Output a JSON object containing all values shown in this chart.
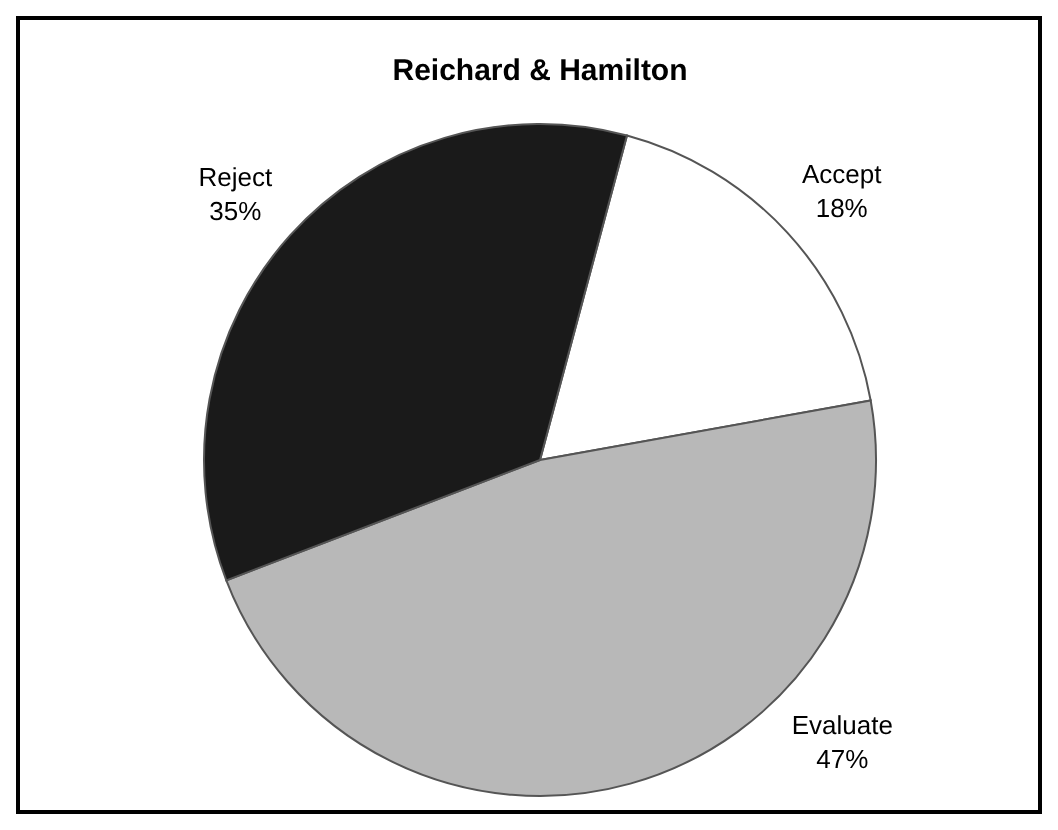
{
  "chart_data": {
    "type": "pie",
    "title": "Reichard & Hamilton",
    "categories": [
      "Accept",
      "Evaluate",
      "Reject"
    ],
    "values": [
      18,
      47,
      35
    ],
    "colors": [
      "#ffffff",
      "#b8b8b8",
      "#1a1a1a"
    ],
    "value_labels": [
      "18%",
      "47%",
      "35%"
    ]
  }
}
